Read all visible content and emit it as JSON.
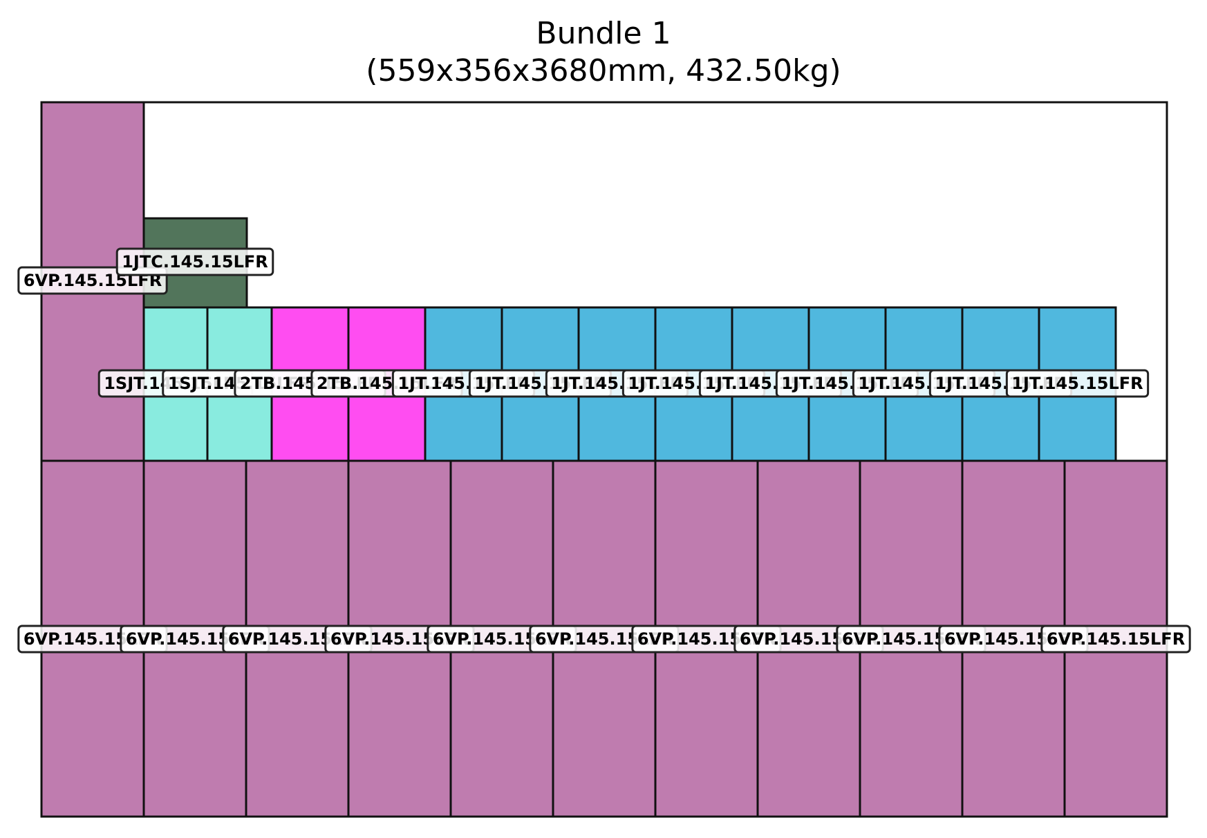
{
  "title": {
    "line1": "Bundle 1",
    "line2": "(559x356x3680mm, 432.50kg)"
  },
  "colors": {
    "6VP": "#bf7caf",
    "1JTC": "#52755b",
    "1SJT": "#89ebdf",
    "2TB": "#ff4df1",
    "1JT": "#50b8de",
    "outline": "#111111"
  },
  "pieces": {
    "tall_left": {
      "code": "6VP",
      "label": "6VP.145.15LFR"
    },
    "jtc": {
      "code": "1JTC",
      "label": "1JTC.145.15LFR"
    },
    "middle_row": [
      {
        "code": "1SJT",
        "label": "1SJT.145.15LFR"
      },
      {
        "code": "1SJT",
        "label": "1SJT.145.15LFR"
      },
      {
        "code": "2TB",
        "label": "2TB.145.15LFR"
      },
      {
        "code": "2TB",
        "label": "2TB.145.15LFR"
      },
      {
        "code": "1JT",
        "label": "1JT.145.15LFR"
      },
      {
        "code": "1JT",
        "label": "1JT.145.15LFR"
      },
      {
        "code": "1JT",
        "label": "1JT.145.15LFR"
      },
      {
        "code": "1JT",
        "label": "1JT.145.15LFR"
      },
      {
        "code": "1JT",
        "label": "1JT.145.15LFR"
      },
      {
        "code": "1JT",
        "label": "1JT.145.15LFR"
      },
      {
        "code": "1JT",
        "label": "1JT.145.15LFR"
      },
      {
        "code": "1JT",
        "label": "1JT.145.15LFR"
      },
      {
        "code": "1JT",
        "label": "1JT.145.15LFR"
      }
    ],
    "bottom_row": [
      {
        "code": "6VP",
        "label": "6VP.145.15LFR"
      },
      {
        "code": "6VP",
        "label": "6VP.145.15LFR"
      },
      {
        "code": "6VP",
        "label": "6VP.145.15LFR"
      },
      {
        "code": "6VP",
        "label": "6VP.145.15LFR"
      },
      {
        "code": "6VP",
        "label": "6VP.145.15LFR"
      },
      {
        "code": "6VP",
        "label": "6VP.145.15LFR"
      },
      {
        "code": "6VP",
        "label": "6VP.145.15LFR"
      },
      {
        "code": "6VP",
        "label": "6VP.145.15LFR"
      },
      {
        "code": "6VP",
        "label": "6VP.145.15LFR"
      },
      {
        "code": "6VP",
        "label": "6VP.145.15LFR"
      },
      {
        "code": "6VP",
        "label": "6VP.145.15LFR"
      }
    ]
  }
}
